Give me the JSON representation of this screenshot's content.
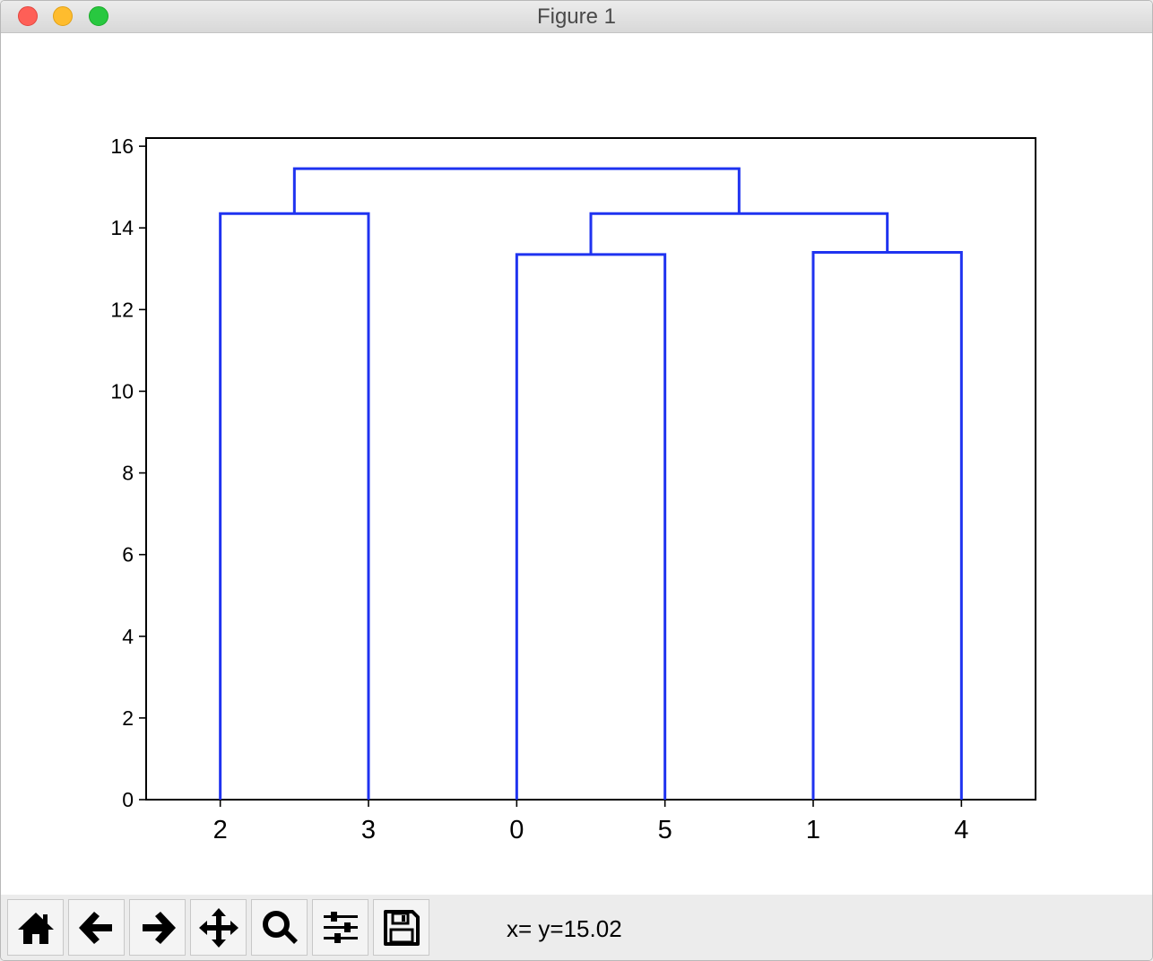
{
  "window": {
    "title": "Figure 1"
  },
  "toolbar": {
    "buttons": [
      {
        "icon": "home-icon"
      },
      {
        "icon": "back-arrow-icon"
      },
      {
        "icon": "forward-arrow-icon"
      },
      {
        "icon": "pan-move-icon"
      },
      {
        "icon": "zoom-magnifier-icon"
      },
      {
        "icon": "configure-subplots-icon"
      },
      {
        "icon": "save-disk-icon"
      }
    ],
    "status": "x= y=15.02"
  },
  "chart_data": {
    "type": "dendrogram",
    "title": "",
    "xlabel": "",
    "ylabel": "",
    "leaves": [
      "2",
      "3",
      "0",
      "5",
      "1",
      "4"
    ],
    "ylim": [
      0,
      16.2
    ],
    "yticks": [
      0,
      2,
      4,
      6,
      8,
      10,
      12,
      14,
      16
    ],
    "merges": [
      {
        "left": "2",
        "right": "3",
        "height": 14.35
      },
      {
        "left": "0",
        "right": "5",
        "height": 13.35
      },
      {
        "left": "1",
        "right": "4",
        "height": 13.4
      },
      {
        "left": "0,5",
        "right": "1,4",
        "height": 14.35
      },
      {
        "left": "2,3",
        "right": "0,5,1,4",
        "height": 15.45
      }
    ],
    "line_color": "#1f33f0",
    "grid": false
  }
}
